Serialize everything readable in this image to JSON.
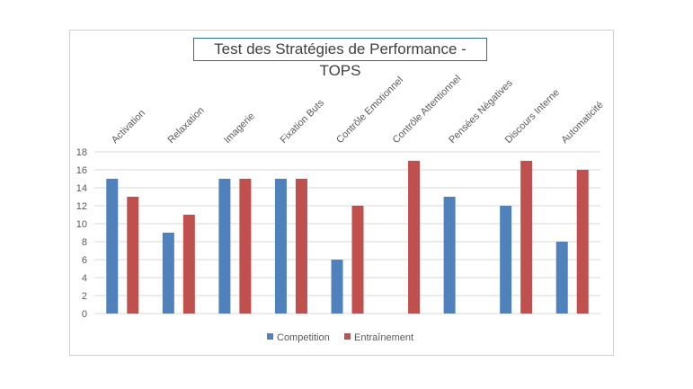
{
  "chart_data": {
    "type": "bar",
    "title": "Test des Stratégies de Performance - TOPS",
    "categories": [
      "Activation",
      "Relaxation",
      "Imagerie",
      "Fixation Buts",
      "Contrôle Emotionnel",
      "Contrôle Attentionnel",
      "Pensées Négatives",
      "Discours Interne",
      "Automaticité"
    ],
    "series": [
      {
        "name": "Competition",
        "color": "#4f81bd",
        "values": [
          15,
          9,
          15,
          15,
          6,
          0,
          13,
          12,
          8
        ]
      },
      {
        "name": "Entraînement",
        "color": "#c0504d",
        "values": [
          13,
          11,
          15,
          15,
          12,
          17,
          0,
          17,
          16
        ]
      }
    ],
    "ylim": [
      0,
      18
    ],
    "yticks": [
      0,
      2,
      4,
      6,
      8,
      10,
      12,
      14,
      16,
      18
    ],
    "grid": true,
    "legend": "bottom",
    "category_axis_position": "top"
  }
}
